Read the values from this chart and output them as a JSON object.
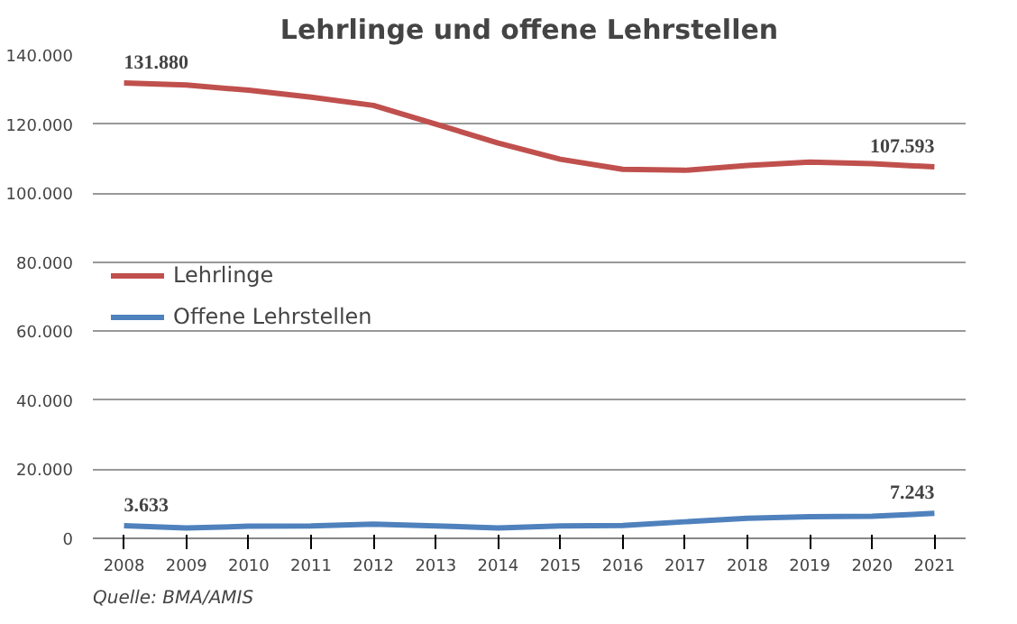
{
  "chart_data": {
    "type": "line",
    "title": "Lehrlinge und offene Lehrstellen",
    "categories": [
      "2008",
      "2009",
      "2010",
      "2011",
      "2012",
      "2013",
      "2014",
      "2015",
      "2016",
      "2017",
      "2018",
      "2019",
      "2020",
      "2021"
    ],
    "series": [
      {
        "name": "Lehrlinge",
        "color": "#c0504d",
        "values": [
          131880,
          131300,
          129800,
          127800,
          125400,
          120000,
          114500,
          109800,
          106900,
          106600,
          108000,
          109000,
          108500,
          107593
        ],
        "value_labels": [
          "131.880",
          null,
          null,
          null,
          null,
          null,
          null,
          null,
          null,
          null,
          null,
          null,
          null,
          "107.593"
        ]
      },
      {
        "name": "Offene Lehrstellen",
        "color": "#4f81bd",
        "values": [
          3633,
          3000,
          3500,
          3600,
          4100,
          3600,
          3000,
          3600,
          3700,
          4800,
          5800,
          6300,
          6400,
          7243
        ],
        "value_labels": [
          "3.633",
          null,
          null,
          null,
          null,
          null,
          null,
          null,
          null,
          null,
          null,
          null,
          null,
          "7.243"
        ]
      }
    ],
    "ylim": [
      0,
      140000
    ],
    "yticks": [
      {
        "value": 0,
        "label": "0"
      },
      {
        "value": 20000,
        "label": "20.000"
      },
      {
        "value": 40000,
        "label": "40.000"
      },
      {
        "value": 60000,
        "label": "60.000"
      },
      {
        "value": 80000,
        "label": "80.000"
      },
      {
        "value": 100000,
        "label": "100.000"
      },
      {
        "value": 120000,
        "label": "120.000"
      },
      {
        "value": 140000,
        "label": "140.000"
      }
    ],
    "grid": "y",
    "legend": "left",
    "marker": "none",
    "line_style": "solid",
    "annotations": [
      "Quelle: BMA/AMIS"
    ]
  }
}
